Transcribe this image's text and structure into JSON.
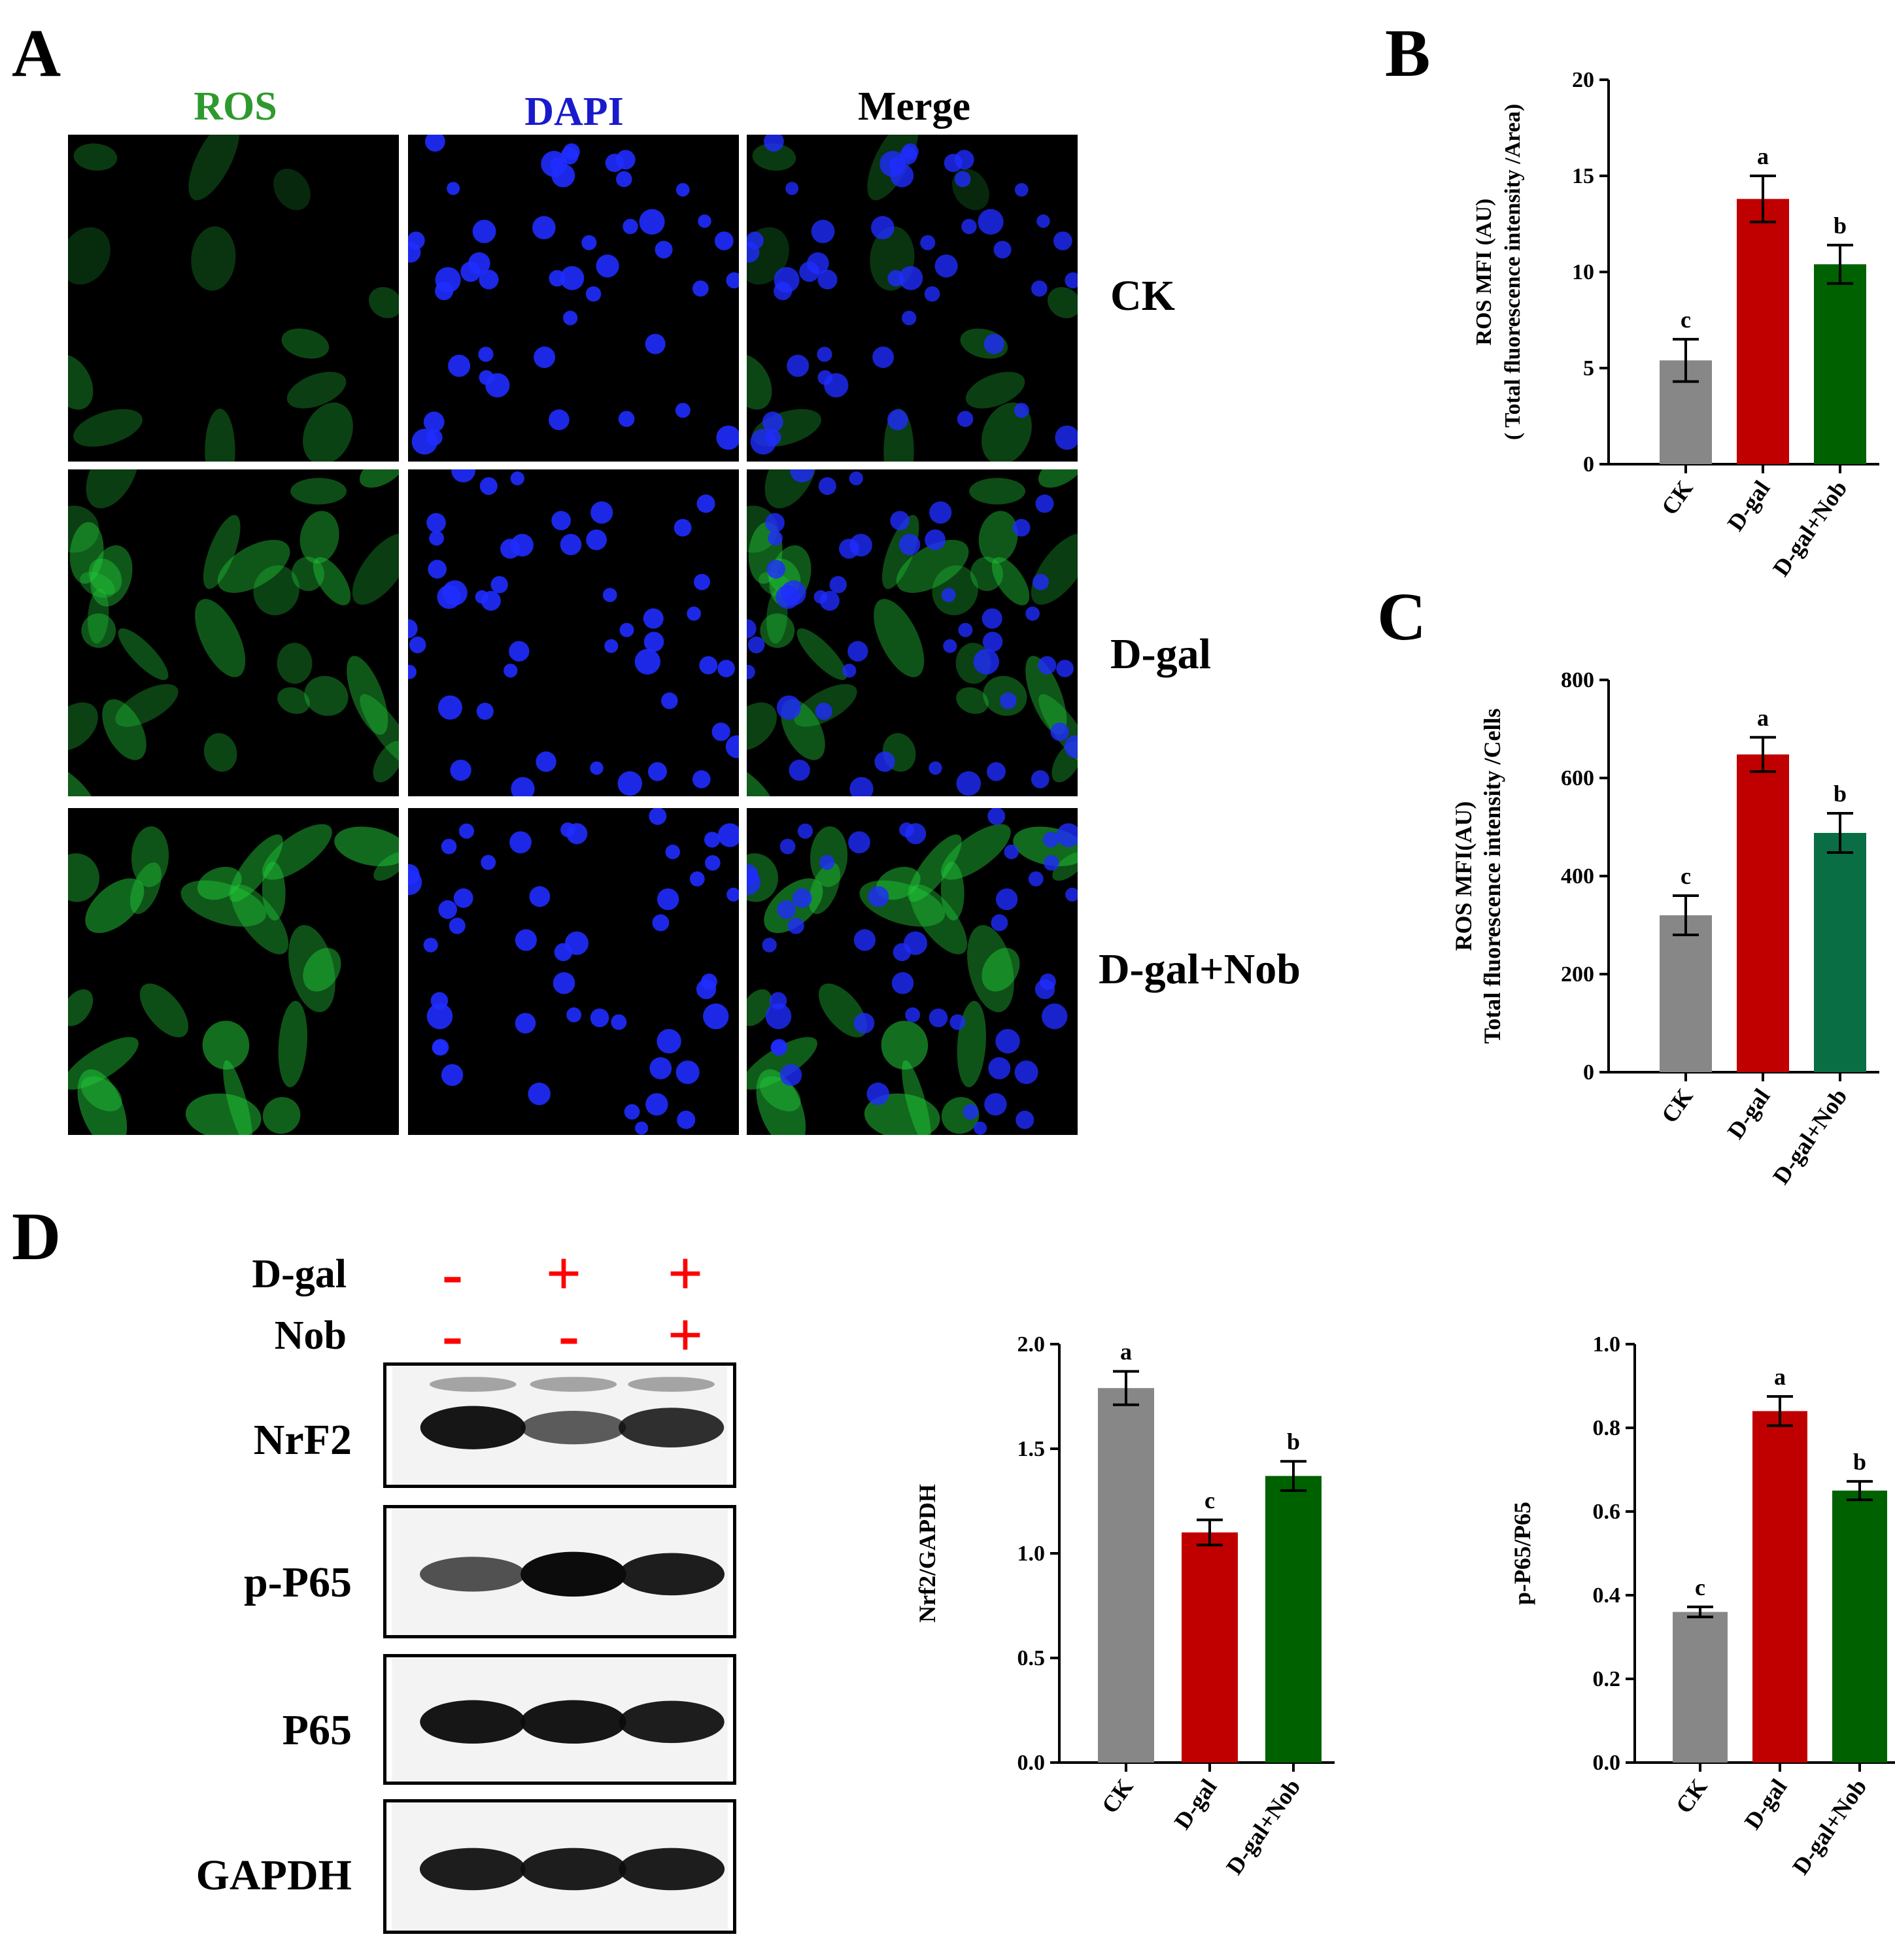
{
  "panel_letters": {
    "a": "A",
    "b": "B",
    "c": "C",
    "d": "D"
  },
  "panel_a": {
    "column_headers": [
      {
        "label": "ROS",
        "color": "#2e9a2e"
      },
      {
        "label": "DAPI",
        "color": "#1a1acc"
      },
      {
        "label": "Merge",
        "color": "#000000"
      }
    ],
    "row_labels": [
      "CK",
      "D-gal",
      "D-gal+Nob"
    ],
    "channel_colors": {
      "ros": "#22c93a",
      "dapi": "#1f2cff"
    }
  },
  "panel_d": {
    "treatments": [
      {
        "label": "D-gal",
        "signs": [
          "-",
          "+",
          "+"
        ]
      },
      {
        "label": "Nob",
        "signs": [
          "-",
          "-",
          "+"
        ]
      }
    ],
    "sign_color": "#ff0000",
    "blots": [
      {
        "label": "NrF2",
        "band_strength": [
          0.95,
          0.55,
          0.8
        ]
      },
      {
        "label": "p-P65",
        "band_strength": [
          0.6,
          1.0,
          0.9
        ]
      },
      {
        "label": "P65",
        "band_strength": [
          0.95,
          0.95,
          0.9
        ]
      },
      {
        "label": "GAPDH",
        "band_strength": [
          0.9,
          0.9,
          0.9
        ]
      }
    ]
  },
  "chart_data": [
    {
      "id": "B",
      "type": "bar",
      "categories": [
        "CK",
        "D-gal",
        "D-gal+Nob"
      ],
      "values": [
        5.4,
        13.8,
        10.4
      ],
      "errors": [
        1.1,
        1.2,
        1.0
      ],
      "letters": [
        "c",
        "a",
        "b"
      ],
      "colors": [
        "#878787",
        "#c00000",
        "#006100"
      ],
      "ylabel_lines": [
        "ROS MFI (AU)",
        "( Total fluorescence intensity /Area)"
      ],
      "yticks": [
        "0",
        "5",
        "10",
        "15",
        "20"
      ],
      "ylim": [
        0,
        20
      ]
    },
    {
      "id": "C",
      "type": "bar",
      "categories": [
        "CK",
        "D-gal",
        "D-gal+Nob"
      ],
      "values": [
        320,
        648,
        488
      ],
      "errors": [
        40,
        35,
        40
      ],
      "letters": [
        "c",
        "a",
        "b"
      ],
      "colors": [
        "#878787",
        "#c00000",
        "#0a6e45"
      ],
      "ylabel_lines": [
        "ROS MFI(AU)",
        "Total fluorescence intensity /Cells"
      ],
      "yticks": [
        "0",
        "200",
        "400",
        "600",
        "800"
      ],
      "ylim": [
        0,
        800
      ]
    },
    {
      "id": "D1",
      "type": "bar",
      "categories": [
        "CK",
        "D-gal",
        "D-gal+Nob"
      ],
      "values": [
        1.79,
        1.1,
        1.37
      ],
      "errors": [
        0.08,
        0.06,
        0.07
      ],
      "letters": [
        "a",
        "c",
        "b"
      ],
      "colors": [
        "#878787",
        "#c00000",
        "#006100"
      ],
      "ylabel_lines": [
        "Nrf2/GAPDH"
      ],
      "yticks": [
        "0.0",
        "0.5",
        "1.0",
        "1.5",
        "2.0"
      ],
      "ylim": [
        0,
        2.0
      ]
    },
    {
      "id": "D2",
      "type": "bar",
      "categories": [
        "CK",
        "D-gal",
        "D-gal+Nob"
      ],
      "values": [
        0.36,
        0.84,
        0.65
      ],
      "errors": [
        0.012,
        0.035,
        0.022
      ],
      "letters": [
        "c",
        "a",
        "b"
      ],
      "colors": [
        "#878787",
        "#c00000",
        "#006100"
      ],
      "ylabel_lines": [
        "p-P65/P65"
      ],
      "yticks": [
        "0.0",
        "0.2",
        "0.4",
        "0.6",
        "0.8",
        "1.0"
      ],
      "ylim": [
        0,
        1.0
      ]
    }
  ]
}
